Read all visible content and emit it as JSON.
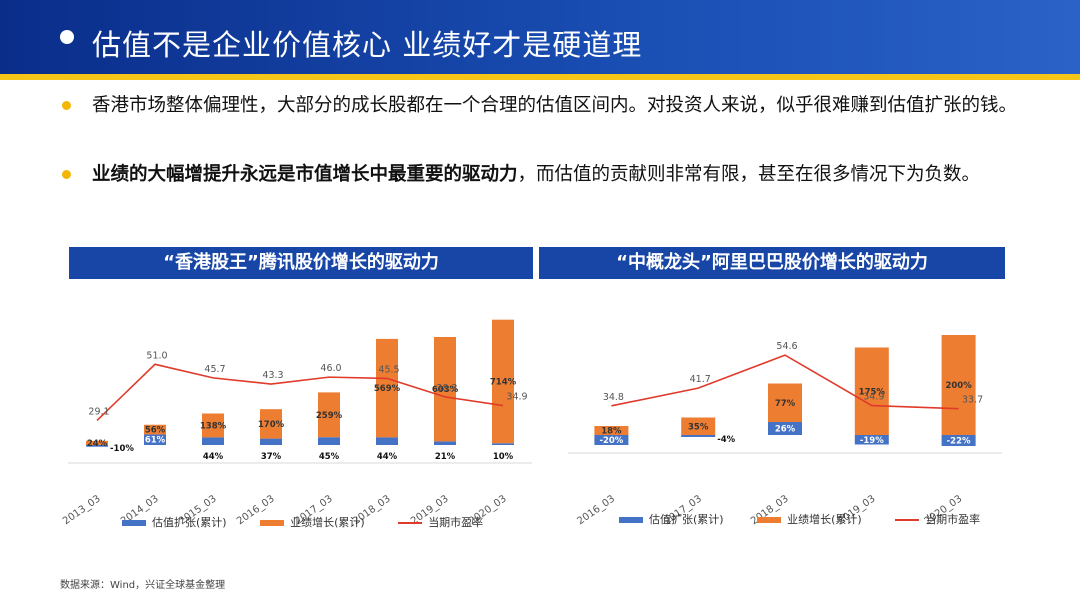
{
  "header": {
    "title": "估值不是企业价值核心  业绩好才是硬道理"
  },
  "bullets": [
    {
      "text": "香港市场整体偏理性，大部分的成长股都在一个合理的估值区间内。对投资人来说，似乎很难赚到估值扩张的钱。"
    },
    {
      "bold": "业绩的大幅增提升永远是市值增长中最重要的驱动力",
      "rest": "，而估值的贡献则非常有限，甚至在很多情况下为负数。"
    }
  ],
  "colors": {
    "valuation": "#4472c4",
    "earnings": "#ed7d31",
    "pe_line": "#e03a2a",
    "banner": "#1846a6",
    "bullet": "#f2b705"
  },
  "chart_data": [
    {
      "type": "bar",
      "title": "“香港股王”腾讯股价增长的驱动力",
      "categories": [
        "2013_03",
        "2014_03",
        "2015_03",
        "2016_03",
        "2017_03",
        "2018_03",
        "2019_03",
        "2020_03"
      ],
      "series": [
        {
          "name": "估值扩张(累计)",
          "kind": "stacked-bar",
          "values": [
            -10,
            61,
            44,
            37,
            45,
            44,
            21,
            10
          ],
          "labels": [
            "-10%",
            "61%",
            "44%",
            "37%",
            "45%",
            "44%",
            "21%",
            "10%"
          ]
        },
        {
          "name": "业绩增长(累计)",
          "kind": "stacked-bar",
          "values": [
            24,
            56,
            138,
            170,
            259,
            569,
            603,
            714
          ],
          "labels": [
            "24%",
            "56%",
            "138%",
            "170%",
            "259%",
            "569%",
            "603%",
            "714%"
          ]
        },
        {
          "name": "当期市盈率",
          "kind": "line",
          "values": [
            29.1,
            51.0,
            45.7,
            43.3,
            46.0,
            45.5,
            38.3,
            34.9
          ],
          "labels": [
            "29.1",
            "51.0",
            "45.7",
            "43.3",
            "46.0",
            "45.5",
            "38.3",
            "34.9"
          ]
        }
      ],
      "bar_ylim": [
        -20,
        780
      ],
      "line_ylim": [
        0,
        80
      ],
      "grid": false,
      "legend": "bottom"
    },
    {
      "type": "bar",
      "title": "“中概龙头”阿里巴巴股价增长的驱动力",
      "categories": [
        "2016_03",
        "2017_03",
        "2018_03",
        "2019_03",
        "2020_03"
      ],
      "series": [
        {
          "name": "估值扩张(累计)",
          "kind": "stacked-bar",
          "values": [
            -20,
            -4,
            26,
            -19,
            -22
          ],
          "labels": [
            "-20%",
            "-4%",
            "26%",
            "-19%",
            "-22%"
          ]
        },
        {
          "name": "业绩增长(累计)",
          "kind": "stacked-bar",
          "values": [
            18,
            35,
            77,
            175,
            200
          ],
          "labels": [
            "18%",
            "35%",
            "77%",
            "175%",
            "200%"
          ]
        },
        {
          "name": "当期市盈率",
          "kind": "line",
          "values": [
            34.8,
            41.7,
            54.6,
            34.9,
            33.7
          ],
          "labels": [
            "34.8",
            "41.7",
            "54.6",
            "34.9",
            "33.7"
          ]
        }
      ],
      "bar_ylim": [
        -40,
        220
      ],
      "line_ylim": [
        0,
        80
      ],
      "grid": false,
      "legend": "bottom"
    }
  ],
  "source": "数据来源：Wind，兴证全球基金整理"
}
